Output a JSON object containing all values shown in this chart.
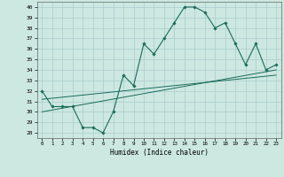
{
  "xlabel": "Humidex (Indice chaleur)",
  "background_color": "#cce8e0",
  "grid_color": "#aacccc",
  "line_color": "#1a6b5a",
  "xlim": [
    -0.5,
    23.5
  ],
  "ylim": [
    27.5,
    40.5
  ],
  "xtick_labels": [
    "0",
    "1",
    "2",
    "3",
    "4",
    "5",
    "6",
    "7",
    "8",
    "9",
    "10",
    "11",
    "12",
    "13",
    "14",
    "15",
    "16",
    "17",
    "18",
    "19",
    "20",
    "21",
    "22",
    "23"
  ],
  "ytick_values": [
    28,
    29,
    30,
    31,
    32,
    33,
    34,
    35,
    36,
    37,
    38,
    39,
    40
  ],
  "series": [
    {
      "x": [
        0,
        1,
        2,
        3,
        4,
        5,
        6,
        7,
        8,
        9,
        10,
        11,
        12,
        13,
        14,
        15,
        16,
        17,
        18,
        19,
        20,
        21,
        22,
        23
      ],
      "y": [
        32,
        30.5,
        30.5,
        30.5,
        28.5,
        28.5,
        28,
        30,
        33.5,
        32.5,
        36.5,
        35.5,
        37,
        38.5,
        40,
        40,
        39.5,
        38,
        38.5,
        36.5,
        34.5,
        36.5,
        34,
        34.5
      ],
      "color": "#1a6b5a",
      "linewidth": 0.8,
      "marker": "D",
      "markersize": 1.8
    },
    {
      "x": [
        0,
        23
      ],
      "y": [
        30.0,
        34.0
      ],
      "color": "#1a6b5a",
      "linewidth": 0.7,
      "marker": null
    },
    {
      "x": [
        0,
        23
      ],
      "y": [
        31.2,
        33.5
      ],
      "color": "#1a6b5a",
      "linewidth": 0.7,
      "marker": null
    }
  ]
}
